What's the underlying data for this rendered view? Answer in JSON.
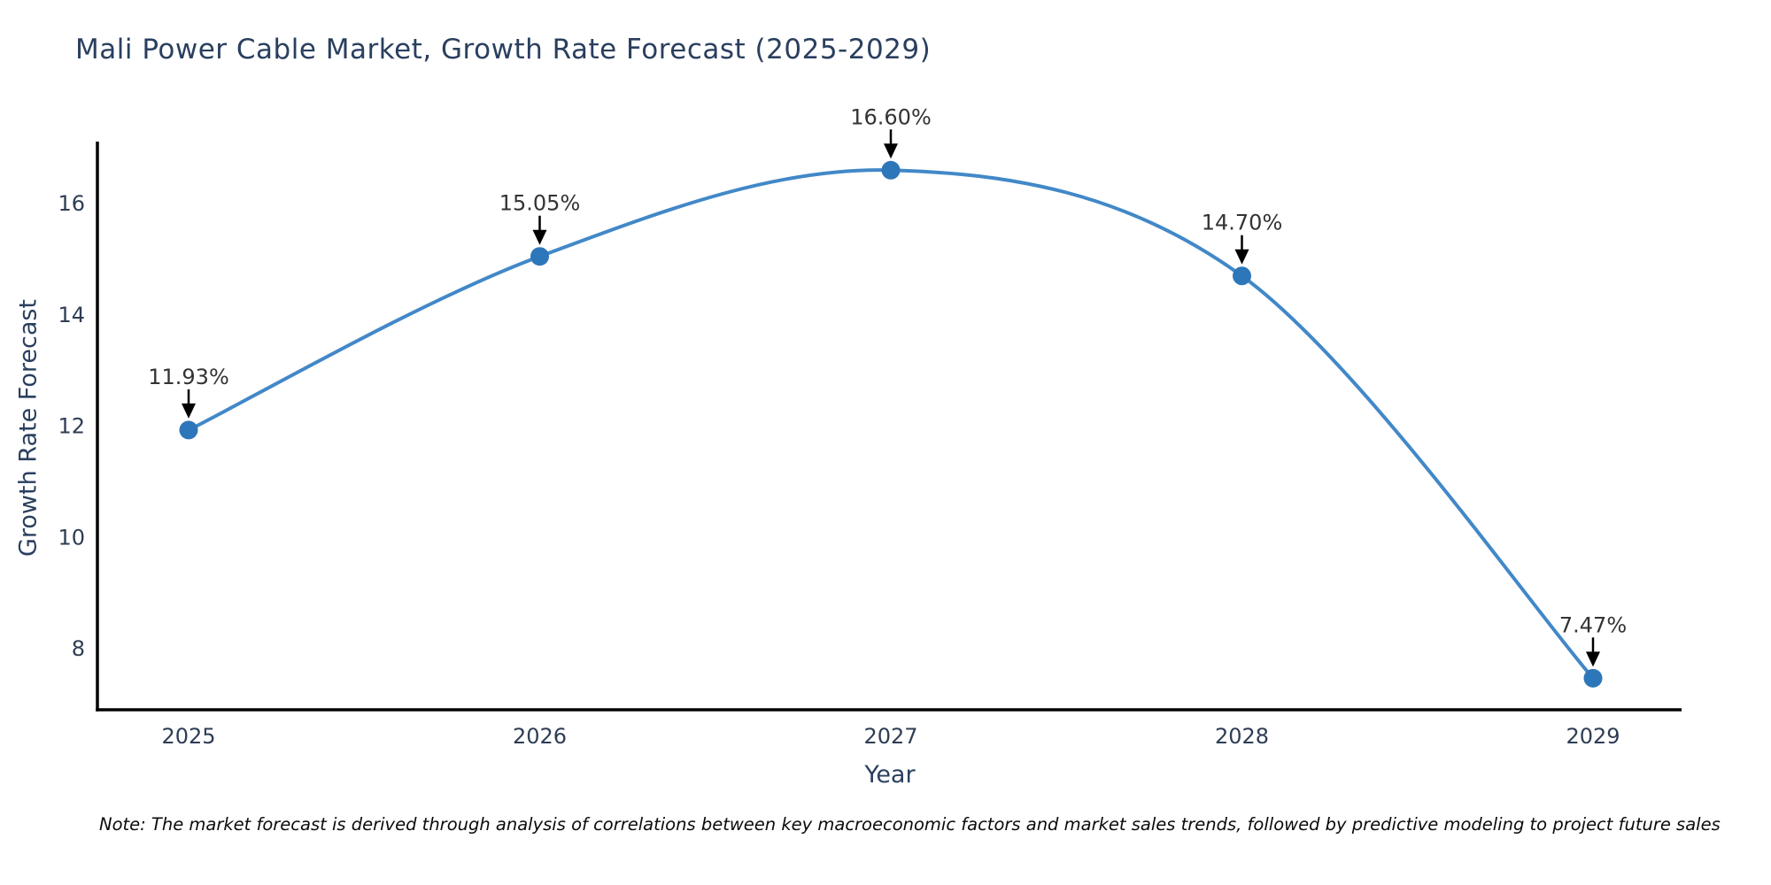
{
  "note": "Note: The market forecast is derived through analysis of correlations between key macroeconomic factors and market sales trends, followed by predictive modeling to project future sales",
  "chart_data": {
    "type": "line",
    "title": "Mali Power Cable Market, Growth Rate Forecast (2025-2029)",
    "xlabel": "Year",
    "ylabel": "Growth Rate Forecast",
    "x": [
      2025,
      2026,
      2027,
      2028,
      2029
    ],
    "values": [
      11.93,
      15.05,
      16.6,
      14.7,
      7.47
    ],
    "point_labels": [
      "11.93%",
      "15.05%",
      "16.60%",
      "14.70%",
      "7.47%"
    ],
    "yticks": [
      8,
      10,
      12,
      14,
      16
    ],
    "xticks": [
      "2025",
      "2026",
      "2027",
      "2028",
      "2029"
    ],
    "ylim": [
      6.9,
      17.1
    ],
    "grid": false,
    "legend": "none",
    "colors": {
      "line": "#4288c8",
      "marker": "#2d76ba",
      "axis": "#000000",
      "arrow": "#000000",
      "tick_text": "#2e3d54",
      "title_text": "#2a3f5f",
      "label_text": "#333333"
    }
  }
}
